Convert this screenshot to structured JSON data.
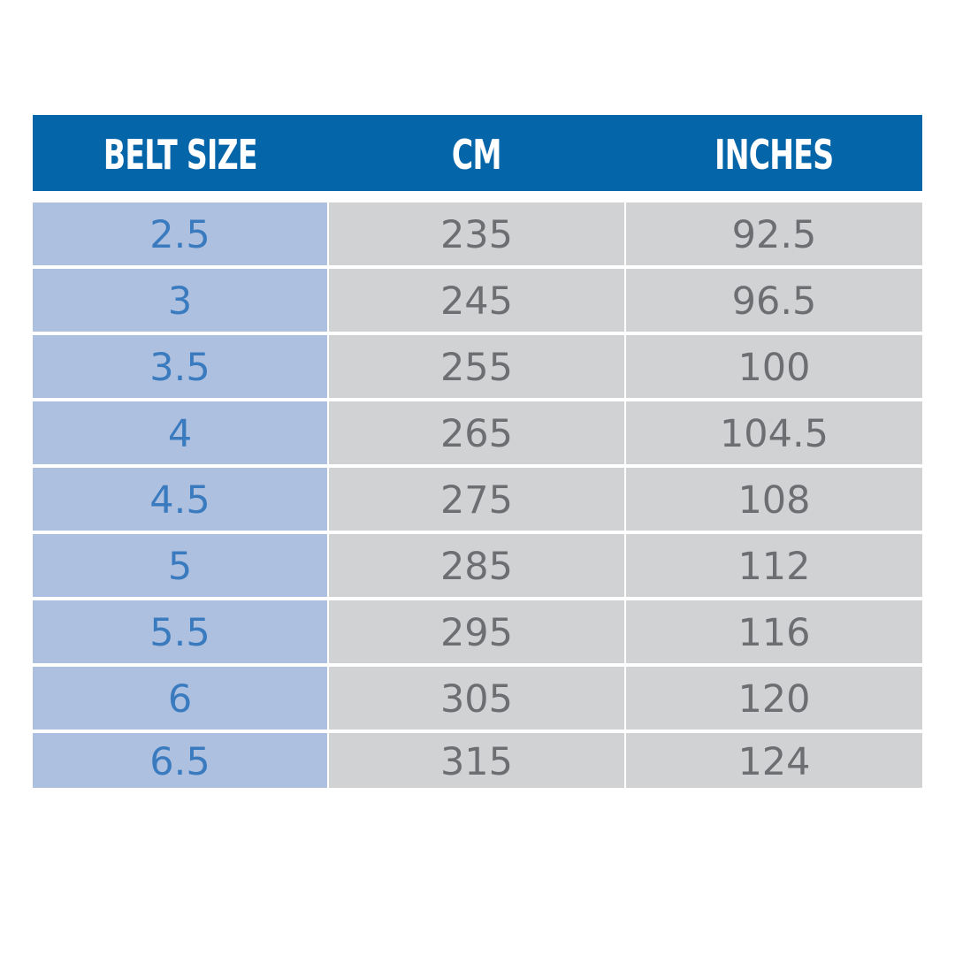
{
  "table": {
    "headers": [
      "BELT SIZE",
      "CM",
      "INCHES"
    ],
    "rows": [
      [
        "2.5",
        "235",
        "92.5"
      ],
      [
        "3",
        "245",
        "96.5"
      ],
      [
        "3.5",
        "255",
        "100"
      ],
      [
        "4",
        "265",
        "104.5"
      ],
      [
        "4.5",
        "275",
        "108"
      ],
      [
        "5",
        "285",
        "112"
      ],
      [
        "5.5",
        "295",
        "116"
      ],
      [
        "6",
        "305",
        "120"
      ],
      [
        "6.5",
        "315",
        "124"
      ]
    ]
  }
}
